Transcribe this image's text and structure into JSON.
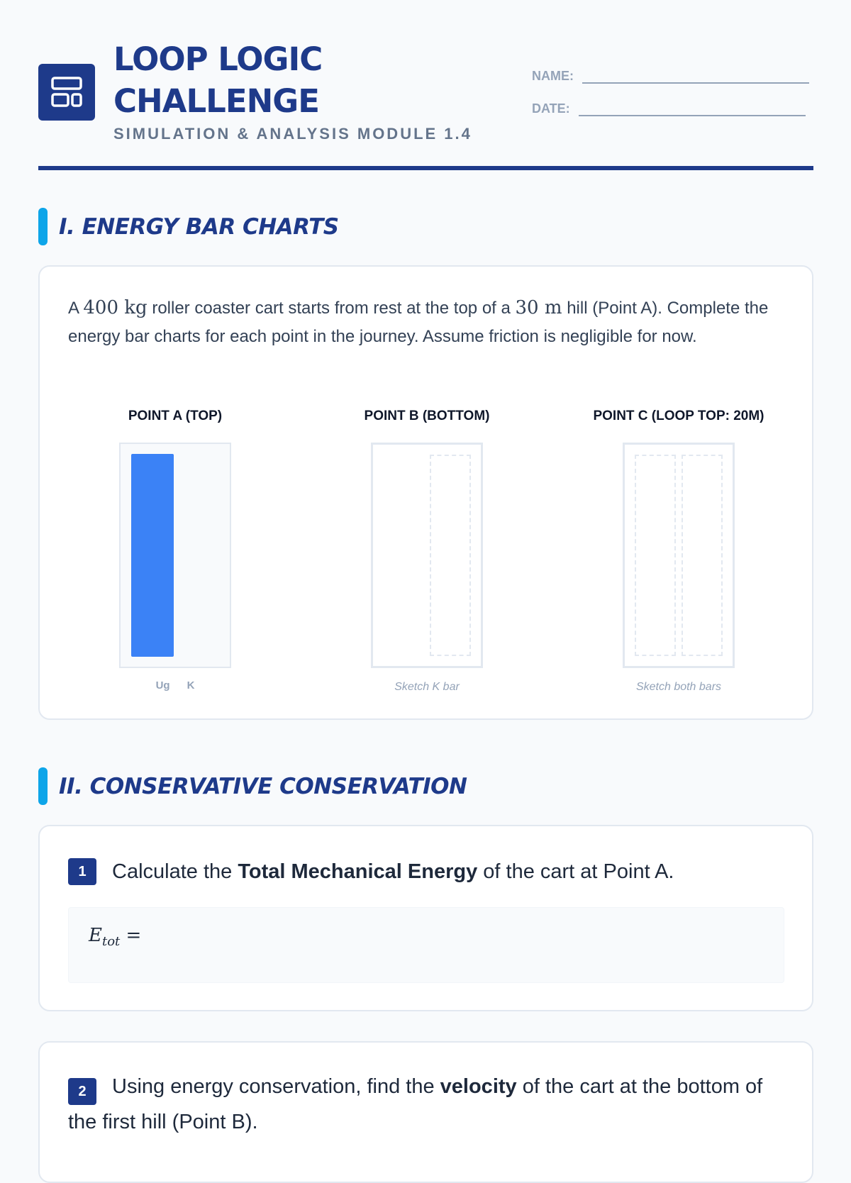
{
  "header": {
    "title_line1": "LOOP LOGIC",
    "title_line2": "CHALLENGE",
    "subtitle": "SIMULATION & ANALYSIS MODULE 1.4",
    "name_label": "NAME:",
    "date_label": "DATE:",
    "logo_icon": "layout-grid-icon"
  },
  "colors": {
    "primary": "#1e3a8a",
    "accent": "#0ea5e9",
    "bar": "#3b82f6"
  },
  "section1": {
    "heading": "I. ENERGY BAR CHARTS",
    "intro": {
      "p1": "A ",
      "mass": "400 kg",
      "p2": " roller coaster cart starts from rest at the top of a ",
      "height": "30 m",
      "p3": " hill (Point A). Complete the energy bar charts for each point in the journey. Assume friction is negligible for now."
    },
    "charts": [
      {
        "title": "POINT A (TOP)",
        "bars": [
          {
            "label": "Ug",
            "fraction": 1.0
          },
          {
            "label": "K",
            "fraction": 0
          }
        ]
      },
      {
        "title": "POINT B (BOTTOM)",
        "caption": "Sketch K bar"
      },
      {
        "title": "POINT C (LOOP TOP: 20M)",
        "caption": "Sketch both bars"
      }
    ]
  },
  "section2": {
    "heading": "II. CONSERVATIVE CONSERVATION",
    "q1": {
      "num": "1",
      "pre": "Calculate the ",
      "bold": "Total Mechanical Energy",
      "post": " of the cart at Point A.",
      "answer_prefix": "E",
      "answer_sub": "tot",
      "answer_eq": " ="
    },
    "q2": {
      "num": "2",
      "pre": "Using energy conservation, find the ",
      "bold": "velocity",
      "post": " of the cart at the bottom of the first hill (Point B)."
    }
  }
}
